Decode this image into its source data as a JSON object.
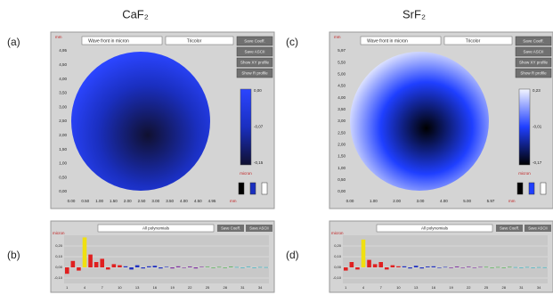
{
  "headings": [
    "CaF₂",
    "SrF₂"
  ],
  "maps": [
    {
      "label": "(a)",
      "dropdowns": [
        "Wave front in micron",
        "Tricolor"
      ],
      "buttons": [
        "Save Coeff.",
        "Save ASCII",
        "Show XY profile",
        "Show R profile"
      ],
      "unit": "mm",
      "yticks": [
        "4,95",
        "4,50",
        "4,00",
        "3,50",
        "3,00",
        "2,50",
        "2,00",
        "1,50",
        "1,00",
        "0,50",
        "0,00"
      ],
      "xticks": [
        "0.00",
        "0.50",
        "1.00",
        "1.50",
        "2.00",
        "2.50",
        "3.00",
        "3.50",
        "4.00",
        "4.50",
        "4.95"
      ],
      "colorbar_labels": [
        "0,00",
        "-0,07",
        "-0,15"
      ],
      "colorbar_unit": "micron",
      "map_colors": [
        "#101030",
        "#1a2fc0",
        "#2b45ff"
      ]
    },
    {
      "label": "(c)",
      "dropdowns": [
        "Wave front in micron",
        "Tricolor"
      ],
      "buttons": [
        "Save Coeff.",
        "Save ASCII",
        "Show XY profile",
        "Show R profile"
      ],
      "unit": "mm",
      "yticks": [
        "5,97",
        "5,50",
        "5,00",
        "4,50",
        "4,00",
        "3,50",
        "3,00",
        "2,50",
        "2,00",
        "1,50",
        "1,00",
        "0,50",
        "0,00"
      ],
      "xticks": [
        "0.00",
        "1.00",
        "2.00",
        "3.00",
        "4.00",
        "5.00",
        "5.97"
      ],
      "colorbar_labels": [
        "0,23",
        "-0,01",
        "-0,17"
      ],
      "colorbar_unit": "micron",
      "map_colors": [
        "#000000",
        "#1f3fff",
        "#f4f6ff"
      ]
    }
  ],
  "coefficients": [
    {
      "label": "(b)",
      "dropdown": "All polynomials",
      "buttons": [
        "Save Coeff.",
        "Save ASCII"
      ],
      "unit": "micron",
      "ylim": [
        -0.15,
        0.3
      ],
      "yticks": [
        {
          "value": 0.2,
          "label": "0,20"
        },
        {
          "value": 0.1,
          "label": "0,10"
        },
        {
          "value": 0,
          "label": "0,00"
        },
        {
          "value": -0.1,
          "label": "-0,10"
        }
      ],
      "xticks": [
        "1",
        "4",
        "7",
        "10",
        "13",
        "16",
        "19",
        "22",
        "25",
        "28",
        "31",
        "34"
      ],
      "series": [
        {
          "color": "#e02020",
          "values": [
            -0.06,
            0.06,
            -0.03
          ]
        },
        {
          "color": "#f0e010",
          "values": [
            0.28
          ]
        },
        {
          "color": "#e02020",
          "values": [
            0.12,
            0.05,
            0.08,
            -0.02,
            0.03,
            0.02
          ]
        },
        {
          "color": "#2030c0",
          "values": [
            0.01,
            -0.02,
            0.02,
            -0.01,
            0.01,
            0.015,
            -0.01,
            0.005
          ]
        },
        {
          "color": "#8030a0",
          "values": [
            -0.01,
            0.01,
            -0.005,
            0.008,
            -0.01,
            0.005
          ]
        },
        {
          "color": "#40b040",
          "values": [
            0.005,
            -0.005,
            0.004,
            -0.003,
            0.006
          ]
        },
        {
          "color": "#20b0c0",
          "values": [
            0.003,
            -0.004,
            0.005,
            -0.002,
            0.003,
            0.002
          ]
        }
      ]
    },
    {
      "label": "(d)",
      "dropdown": "All polynomials",
      "buttons": [
        "Save Coeff.",
        "Save ASCII"
      ],
      "unit": "micron",
      "ylim": [
        -0.15,
        0.3
      ],
      "yticks": [
        {
          "value": 0.2,
          "label": "0,20"
        },
        {
          "value": 0.1,
          "label": "0,10"
        },
        {
          "value": 0,
          "label": "0,00"
        },
        {
          "value": -0.1,
          "label": "-0,10"
        }
      ],
      "xticks": [
        "1",
        "4",
        "7",
        "10",
        "13",
        "16",
        "19",
        "22",
        "25",
        "28",
        "31",
        "34"
      ],
      "series": [
        {
          "color": "#e02020",
          "values": [
            -0.03,
            0.05,
            -0.02
          ]
        },
        {
          "color": "#f0e010",
          "values": [
            0.26
          ]
        },
        {
          "color": "#e02020",
          "values": [
            0.07,
            0.03,
            0.05,
            -0.02,
            0.02,
            0.01
          ]
        },
        {
          "color": "#2030c0",
          "values": [
            0.01,
            -0.01,
            0.015,
            -0.01,
            0.008,
            0.01,
            -0.005,
            0.004
          ]
        },
        {
          "color": "#8030a0",
          "values": [
            -0.006,
            0.008,
            -0.004,
            0.006,
            -0.005,
            0.004
          ]
        },
        {
          "color": "#40b040",
          "values": [
            0.004,
            -0.003,
            0.003,
            -0.002,
            0.004
          ]
        },
        {
          "color": "#20b0c0",
          "values": [
            0.002,
            -0.003,
            0.003,
            -0.002,
            0.002,
            0.001
          ]
        }
      ]
    }
  ]
}
